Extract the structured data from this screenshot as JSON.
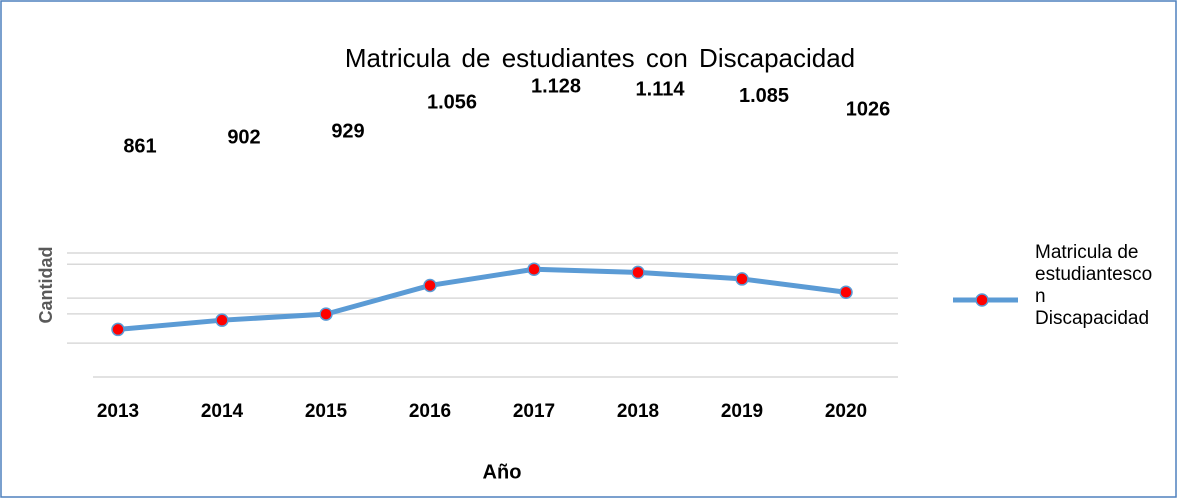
{
  "chart_data": {
    "type": "line",
    "title": "Matricula de estudiantes con Discapacidad",
    "x_label": "Año",
    "y_label": "Cantidad",
    "categories": [
      "2013",
      "2014",
      "2015",
      "2016",
      "2017",
      "2018",
      "2019",
      "2020"
    ],
    "series": [
      {
        "name": "Matricula de estudiantescon Discapacidad",
        "color": "#5b9bd5",
        "marker_color": "#ff0000",
        "values": [
          861,
          902,
          929,
          1056,
          1128,
          1114,
          1085,
          1026
        ],
        "value_labels": [
          "861",
          "902",
          "929",
          "1.056",
          "1.128",
          "1.114",
          "1.085",
          "1026"
        ]
      }
    ],
    "ylim": [
      650,
      1200
    ],
    "yticks": [
      650,
      800,
      930,
      1000,
      1150,
      1200
    ],
    "grid": true
  }
}
